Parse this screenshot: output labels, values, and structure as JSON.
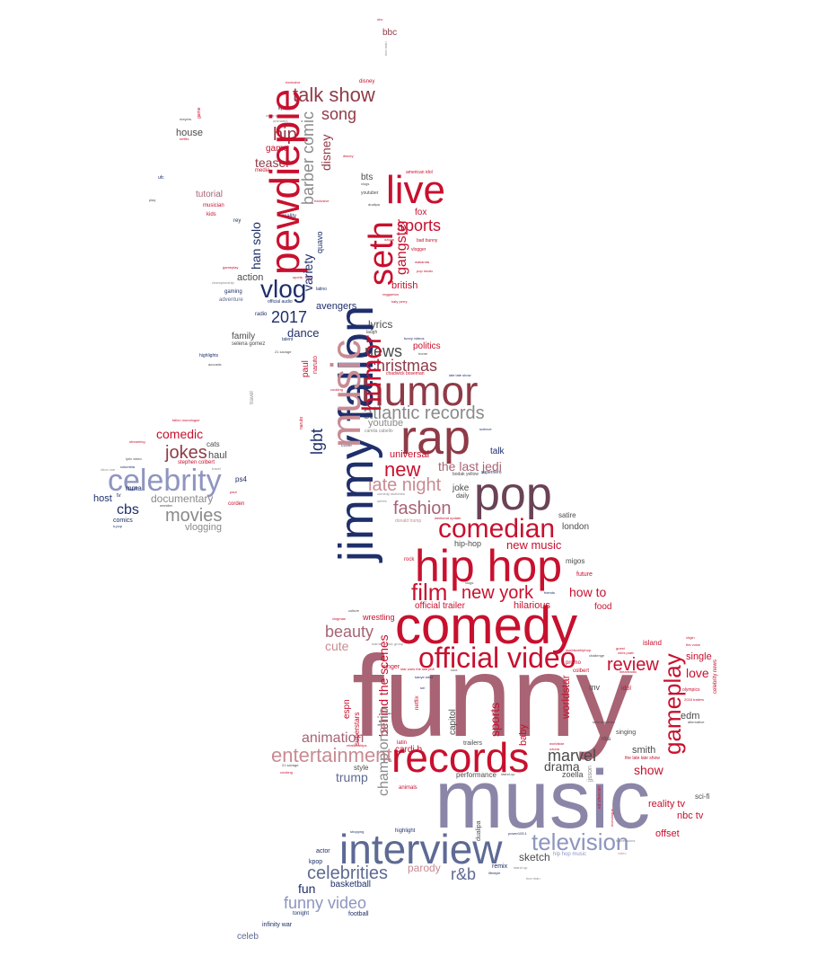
{
  "palette": {
    "crimson": "#c8102e",
    "red": "#d12a3b",
    "rose": "#c98b93",
    "mauve": "#a86374",
    "maroon": "#8f3b47",
    "plum": "#6a4255",
    "navy": "#1f2f6b",
    "slate": "#5e6a94",
    "periwinkle": "#8e95bf",
    "lavender": "#8b86a8",
    "gray": "#8a8a8a",
    "charcoal": "#4b4b4b"
  },
  "words": [
    {
      "text": "funny",
      "color": "mauve"
    },
    {
      "text": "music",
      "color": "lavender"
    },
    {
      "text": "comedy",
      "color": "crimson"
    },
    {
      "text": "hip hop",
      "color": "crimson"
    },
    {
      "text": "interview",
      "color": "slate"
    },
    {
      "text": "records",
      "color": "crimson"
    },
    {
      "text": "humor",
      "color": "maroon"
    },
    {
      "text": "rap",
      "color": "maroon"
    },
    {
      "text": "pop",
      "color": "plum"
    },
    {
      "text": "official video",
      "color": "crimson"
    },
    {
      "text": "celebrity",
      "color": "periwinkle"
    },
    {
      "text": "comedian",
      "color": "crimson"
    },
    {
      "text": "live",
      "color": "crimson"
    },
    {
      "text": "television",
      "color": "periwinkle"
    },
    {
      "text": "entertainment",
      "color": "rose"
    },
    {
      "text": "vlog",
      "color": "navy"
    },
    {
      "text": "atlantic records",
      "color": "gray"
    },
    {
      "text": "film",
      "color": "crimson"
    },
    {
      "text": "new york",
      "color": "crimson"
    },
    {
      "text": "late night",
      "color": "rose"
    },
    {
      "text": "fashion",
      "color": "mauve"
    },
    {
      "text": "new",
      "color": "crimson"
    },
    {
      "text": "celebrities",
      "color": "slate"
    },
    {
      "text": "funny video",
      "color": "periwinkle"
    },
    {
      "text": "talk show",
      "color": "maroon"
    },
    {
      "text": "review",
      "color": "crimson"
    },
    {
      "text": "jokes",
      "color": "maroon"
    },
    {
      "text": "movies",
      "color": "gray"
    },
    {
      "text": "christmas",
      "color": "maroon"
    },
    {
      "text": "beauty",
      "color": "mauve"
    },
    {
      "text": "marvel",
      "color": "charcoal"
    },
    {
      "text": "song",
      "color": "maroon"
    },
    {
      "text": "sports",
      "color": "crimson"
    },
    {
      "text": "animation",
      "color": "mauve"
    },
    {
      "text": "news",
      "color": "charcoal"
    },
    {
      "text": "hip",
      "color": "maroon"
    },
    {
      "text": "2017",
      "color": "navy"
    },
    {
      "text": "cbs",
      "color": "navy"
    },
    {
      "text": "r&b",
      "color": "slate"
    },
    {
      "text": "the last jedi",
      "color": "mauve"
    },
    {
      "text": "comedic",
      "color": "crimson"
    },
    {
      "text": "drama",
      "color": "charcoal"
    },
    {
      "text": "parody",
      "color": "rose"
    },
    {
      "text": "cute",
      "color": "rose"
    },
    {
      "text": "how to",
      "color": "crimson"
    },
    {
      "text": "new music",
      "color": "crimson"
    },
    {
      "text": "love",
      "color": "crimson"
    },
    {
      "text": "show",
      "color": "crimson"
    },
    {
      "text": "fun",
      "color": "navy"
    },
    {
      "text": "teaser",
      "color": "maroon"
    },
    {
      "text": "sketch",
      "color": "charcoal"
    },
    {
      "text": "trump",
      "color": "slate"
    },
    {
      "text": "dance",
      "color": "navy"
    },
    {
      "text": "documentary",
      "color": "gray"
    },
    {
      "text": "british",
      "color": "crimson"
    },
    {
      "text": "universal",
      "color": "crimson"
    },
    {
      "text": "youtube",
      "color": "gray"
    },
    {
      "text": "lyrics",
      "color": "charcoal"
    },
    {
      "text": "avengers",
      "color": "navy"
    },
    {
      "text": "hilarious",
      "color": "crimson"
    },
    {
      "text": "house",
      "color": "charcoal"
    },
    {
      "text": "haul",
      "color": "charcoal"
    },
    {
      "text": "vlogging",
      "color": "gray"
    },
    {
      "text": "action",
      "color": "charcoal"
    },
    {
      "text": "single",
      "color": "crimson"
    },
    {
      "text": "edm",
      "color": "charcoal"
    },
    {
      "text": "smith",
      "color": "charcoal"
    },
    {
      "text": "offset",
      "color": "crimson"
    },
    {
      "text": "reality tv",
      "color": "crimson"
    },
    {
      "text": "nbc tv",
      "color": "crimson"
    },
    {
      "text": "basketball",
      "color": "navy"
    },
    {
      "text": "host",
      "color": "navy"
    },
    {
      "text": "family",
      "color": "charcoal"
    },
    {
      "text": "tutorial",
      "color": "mauve"
    },
    {
      "text": "game",
      "color": "crimson"
    },
    {
      "text": "politics",
      "color": "crimson"
    },
    {
      "text": "joke",
      "color": "charcoal"
    },
    {
      "text": "london",
      "color": "charcoal"
    },
    {
      "text": "official trailer",
      "color": "crimson"
    },
    {
      "text": "food",
      "color": "crimson"
    },
    {
      "text": "wrestling",
      "color": "crimson"
    },
    {
      "text": "cardi b",
      "color": "crimson"
    },
    {
      "text": "zoella",
      "color": "charcoal"
    },
    {
      "text": "performance",
      "color": "charcoal"
    },
    {
      "text": "style",
      "color": "charcoal"
    },
    {
      "text": "bts",
      "color": "charcoal"
    },
    {
      "text": "fox",
      "color": "crimson"
    },
    {
      "text": "talk",
      "color": "navy"
    },
    {
      "text": "celeb",
      "color": "slate"
    },
    {
      "text": "bbc",
      "color": "maroon"
    },
    {
      "text": "hip-hop",
      "color": "charcoal"
    },
    {
      "text": "mv",
      "color": "charcoal"
    },
    {
      "text": "sci-fi",
      "color": "charcoal"
    },
    {
      "text": "satire",
      "color": "charcoal"
    },
    {
      "text": "migos",
      "color": "charcoal"
    },
    {
      "text": "island",
      "color": "crimson"
    },
    {
      "text": "idol",
      "color": "crimson"
    },
    {
      "text": "ps4",
      "color": "navy"
    },
    {
      "text": "cats",
      "color": "charcoal"
    },
    {
      "text": "mma",
      "color": "navy"
    },
    {
      "text": "comics",
      "color": "navy"
    },
    {
      "text": "actor",
      "color": "navy"
    },
    {
      "text": "kpop",
      "color": "navy"
    },
    {
      "text": "remix",
      "color": "navy"
    },
    {
      "text": "daily",
      "color": "charcoal"
    },
    {
      "text": "future",
      "color": "crimson"
    },
    {
      "text": "rock",
      "color": "crimson"
    },
    {
      "text": "trailers",
      "color": "charcoal"
    },
    {
      "text": "football",
      "color": "navy"
    },
    {
      "text": "tonight",
      "color": "navy"
    },
    {
      "text": "infinity war",
      "color": "navy"
    },
    {
      "text": "latin",
      "color": "crimson"
    },
    {
      "text": "singer",
      "color": "crimson"
    },
    {
      "text": "promo",
      "color": "crimson"
    },
    {
      "text": "colbert",
      "color": "crimson"
    },
    {
      "text": "singing",
      "color": "charcoal"
    },
    {
      "text": "nba",
      "color": "charcoal"
    },
    {
      "text": "highlight",
      "color": "navy"
    },
    {
      "text": "animals",
      "color": "crimson"
    },
    {
      "text": "stephen colbert",
      "color": "crimson"
    },
    {
      "text": "corden",
      "color": "crimson"
    },
    {
      "text": "media",
      "color": "crimson"
    },
    {
      "text": "kids",
      "color": "crimson"
    },
    {
      "text": "musician",
      "color": "crimson"
    },
    {
      "text": "rey",
      "color": "navy"
    },
    {
      "text": "reality",
      "color": "navy"
    },
    {
      "text": "radio",
      "color": "navy"
    },
    {
      "text": "gaming",
      "color": "navy"
    },
    {
      "text": "adventure",
      "color": "slate"
    },
    {
      "text": "highlights",
      "color": "navy"
    },
    {
      "text": "laugh",
      "color": "charcoal"
    },
    {
      "text": "youtuber",
      "color": "charcoal"
    },
    {
      "text": "latino",
      "color": "navy"
    },
    {
      "text": "official audio",
      "color": "navy"
    },
    {
      "text": "talent",
      "color": "navy"
    },
    {
      "text": "ufc",
      "color": "navy"
    },
    {
      "text": "cover",
      "color": "navy"
    },
    {
      "text": "camila cabello",
      "color": "gray"
    },
    {
      "text": "vlogger",
      "color": "crimson"
    },
    {
      "text": "pop music",
      "color": "crimson"
    },
    {
      "text": "wakanda",
      "color": "crimson"
    },
    {
      "text": "bad bunny",
      "color": "crimson"
    },
    {
      "text": "american idol",
      "color": "crimson"
    },
    {
      "text": "reggaeton",
      "color": "crimson"
    },
    {
      "text": "katy perry",
      "color": "crimson"
    },
    {
      "text": "chadwick boseman",
      "color": "crimson"
    },
    {
      "text": "kylo ren",
      "color": "navy"
    },
    {
      "text": "news story",
      "color": "gray"
    },
    {
      "text": "animated",
      "color": "gray"
    },
    {
      "text": "meyers",
      "color": "charcoal"
    },
    {
      "text": "play",
      "color": "charcoal"
    },
    {
      "text": "acoustic",
      "color": "charcoal"
    },
    {
      "text": "columbia",
      "color": "navy"
    },
    {
      "text": "lyric video",
      "color": "charcoal"
    },
    {
      "text": "streaming",
      "color": "crimson"
    },
    {
      "text": "tv",
      "color": "navy"
    },
    {
      "text": "k-pop",
      "color": "navy"
    },
    {
      "text": "xbox one",
      "color": "gray"
    },
    {
      "text": "wrestler",
      "color": "charcoal"
    },
    {
      "text": "fallon monologue",
      "color": "crimson"
    },
    {
      "text": "bodak yellow",
      "color": "charcoal"
    },
    {
      "text": "supernero",
      "color": "navy"
    },
    {
      "text": "comedy sketches",
      "color": "gray"
    },
    {
      "text": "series",
      "color": "gray"
    },
    {
      "text": "donald trump",
      "color": "rose"
    },
    {
      "text": "weekend update",
      "color": "crimson"
    },
    {
      "text": "science",
      "color": "navy"
    },
    {
      "text": "shoppng",
      "color": "navy"
    },
    {
      "text": "power105.1",
      "color": "navy"
    },
    {
      "text": "hip hop music",
      "color": "periwinkle"
    },
    {
      "text": "impressions",
      "color": "gray"
    },
    {
      "text": "the voice",
      "color": "crimson"
    },
    {
      "text": "olympics",
      "color": "crimson"
    },
    {
      "text": "2018 trailers",
      "color": "crimson"
    },
    {
      "text": "alternative",
      "color": "charcoal"
    },
    {
      "text": "the late late show",
      "color": "crimson"
    },
    {
      "text": "worldstar",
      "color": "crimson"
    },
    {
      "text": "chris pratt",
      "color": "crimson"
    },
    {
      "text": "guest",
      "color": "crimson"
    },
    {
      "text": "virgin",
      "color": "crimson"
    },
    {
      "text": "iheartradio",
      "color": "crimson"
    },
    {
      "text": "stand-up",
      "color": "charcoal"
    },
    {
      "text": "stand up",
      "color": "gray"
    },
    {
      "text": "iron man",
      "color": "gray"
    },
    {
      "text": "exclusive",
      "color": "crimson"
    },
    {
      "text": "disney",
      "color": "crimson"
    },
    {
      "text": "vlogs",
      "color": "charcoal"
    },
    {
      "text": "dualipa",
      "color": "charcoal"
    },
    {
      "text": "ozuna",
      "color": "crimson"
    },
    {
      "text": "selena gomez",
      "color": "charcoal"
    },
    {
      "text": "21 savage",
      "color": "charcoal"
    },
    {
      "text": "cooking",
      "color": "crimson"
    },
    {
      "text": "relationships",
      "color": "crimson"
    },
    {
      "text": "snl",
      "color": "navy"
    },
    {
      "text": "home",
      "color": "charcoal"
    },
    {
      "text": "will smith",
      "color": "navy"
    },
    {
      "text": "cool",
      "color": "charcoal"
    },
    {
      "text": "star wars the last jedi",
      "color": "crimson"
    },
    {
      "text": "kanye west",
      "color": "navy"
    },
    {
      "text": "worldwarhiphop",
      "color": "crimson"
    },
    {
      "text": "challenge",
      "color": "charcoal"
    },
    {
      "text": "warner music group",
      "color": "gray"
    },
    {
      "text": "vlogmas",
      "color": "crimson"
    },
    {
      "text": "culture",
      "color": "charcoal"
    },
    {
      "text": "netflix",
      "color": "crimson"
    },
    {
      "text": "elan degeneres",
      "color": "crimson"
    },
    {
      "text": "graduation",
      "color": "charcoal"
    },
    {
      "text": "behind the scenes",
      "color": "crimson"
    },
    {
      "text": "superstars",
      "color": "crimson"
    },
    {
      "text": "espn",
      "color": "crimson"
    },
    {
      "text": "sports",
      "color": "crimson"
    },
    {
      "text": "baby",
      "color": "crimson"
    },
    {
      "text": "capitol",
      "color": "charcoal"
    },
    {
      "text": "gameplay",
      "color": "crimson"
    },
    {
      "text": "championship",
      "color": "gray"
    },
    {
      "text": "travel",
      "color": "gray"
    },
    {
      "text": "paul",
      "color": "crimson"
    },
    {
      "text": "naruto",
      "color": "crimson"
    },
    {
      "text": "lgbt",
      "color": "navy"
    },
    {
      "text": "han solo",
      "color": "navy"
    },
    {
      "text": "variety",
      "color": "navy"
    },
    {
      "text": "quavo",
      "color": "navy"
    },
    {
      "text": "barber comic",
      "color": "gray"
    },
    {
      "text": "gangster",
      "color": "crimson"
    },
    {
      "text": "seth",
      "color": "crimson"
    },
    {
      "text": "jimmy fallon",
      "color": "navy"
    },
    {
      "text": "pewdiepie",
      "color": "crimson"
    },
    {
      "text": "jjsson",
      "color": "gray"
    },
    {
      "text": "ed sheeran",
      "color": "crimson"
    },
    {
      "text": "monologue",
      "color": "crimson"
    },
    {
      "text": "celebrity news",
      "color": "crimson"
    },
    {
      "text": "famous",
      "color": "crimson"
    },
    {
      "text": "luke skywalker",
      "color": "crimson"
    },
    {
      "text": "james corden",
      "color": "crimson"
    },
    {
      "text": "hollywood",
      "color": "rose"
    },
    {
      "text": "clip",
      "color": "crimson"
    },
    {
      "text": "saturday night live",
      "color": "navy"
    },
    {
      "text": "friends",
      "color": "navy"
    },
    {
      "text": "lifestyle",
      "color": "navy"
    },
    {
      "text": "makeup",
      "color": "navy"
    },
    {
      "text": "black panther",
      "color": "navy"
    },
    {
      "text": "funny videos",
      "color": "navy"
    },
    {
      "text": "late late show",
      "color": "navy"
    },
    {
      "text": "star wars",
      "color": "maroon"
    },
    {
      "text": "nbc",
      "color": "crimson"
    },
    {
      "text": "movie",
      "color": "mauve"
    },
    {
      "text": "video",
      "color": "rose"
    },
    {
      "text": "2018",
      "color": "navy"
    },
    {
      "text": "dipo",
      "color": "crimson"
    },
    {
      "text": "entertainment",
      "color": "crimson"
    },
    {
      "text": "world breaking entertainment",
      "color": "navy"
    },
    {
      "text": "album",
      "color": "crimson"
    },
    {
      "text": "wwe",
      "color": "crimson"
    },
    {
      "text": "los angeles",
      "color": "gray"
    },
    {
      "text": "smoking",
      "color": "crimson"
    },
    {
      "text": "thor",
      "color": "charcoal"
    },
    {
      "text": "rap music",
      "color": "gray"
    },
    {
      "text": "news",
      "color": "gray"
    },
    {
      "text": "music video",
      "color": "gray"
    },
    {
      "text": "wenp",
      "color": "gray"
    },
    {
      "text": "gangsta",
      "color": "gray"
    },
    {
      "text": "soundtrack",
      "color": "gray"
    },
    {
      "text": "dance",
      "color": "gray"
    }
  ]
}
